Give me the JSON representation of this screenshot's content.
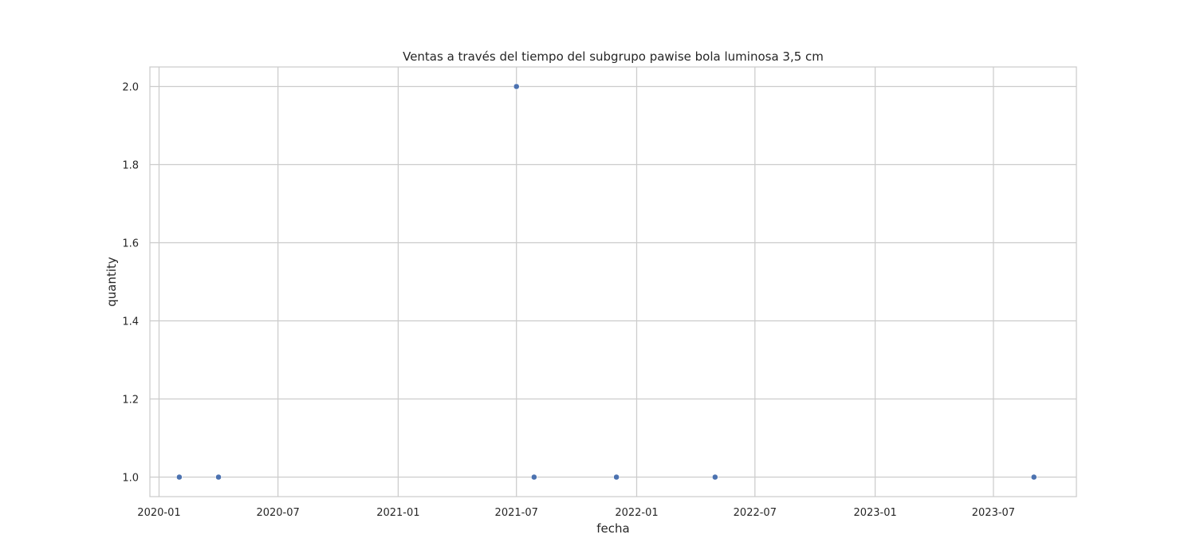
{
  "chart_data": {
    "type": "scatter",
    "title": "Ventas a través del tiempo del subgrupo pawise bola luminosa 3,5 cm",
    "xlabel": "fecha",
    "ylabel": "quantity",
    "x_type": "date",
    "xlim": [
      "2019-12-18",
      "2023-11-05"
    ],
    "ylim": [
      0.95,
      2.05
    ],
    "x_ticks": [
      "2020-01",
      "2020-07",
      "2021-01",
      "2021-07",
      "2022-01",
      "2022-07",
      "2023-01",
      "2023-07"
    ],
    "y_ticks": [
      "1.0",
      "1.2",
      "1.4",
      "1.6",
      "1.8",
      "2.0"
    ],
    "grid": true,
    "legend": "none",
    "series": [
      {
        "color": "#4c72b0",
        "points": [
          {
            "x": "2020-02-01",
            "y": 1
          },
          {
            "x": "2020-04-01",
            "y": 1
          },
          {
            "x": "2021-07-01",
            "y": 2
          },
          {
            "x": "2021-07-28",
            "y": 1
          },
          {
            "x": "2021-12-01",
            "y": 1
          },
          {
            "x": "2022-05-01",
            "y": 1
          },
          {
            "x": "2023-09-01",
            "y": 1
          }
        ]
      }
    ],
    "colors": {
      "grid": "#cccccc",
      "frame": "#cccccc",
      "text": "#262626",
      "background": "#ffffff"
    }
  }
}
